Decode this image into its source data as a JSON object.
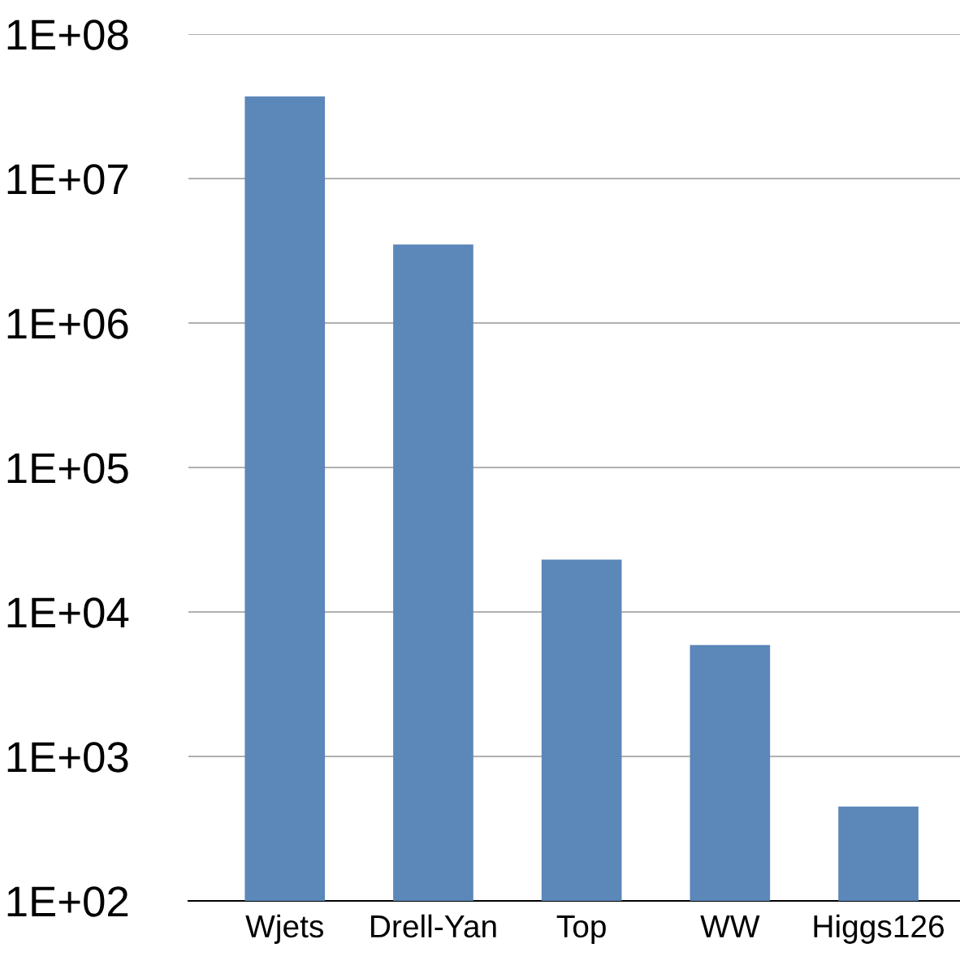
{
  "chart_data": {
    "type": "bar",
    "categories": [
      "Wjets",
      "Drell-Yan",
      "Top",
      "WW",
      "Higgs126"
    ],
    "values": [
      37000000,
      3500000,
      23000,
      5900,
      450
    ],
    "color": "#5b87b9",
    "log": "y",
    "ylim": [
      100,
      100000000
    ],
    "yticks": [
      {
        "value": 100,
        "label": "1E+02"
      },
      {
        "value": 1000,
        "label": "1E+03"
      },
      {
        "value": 10000,
        "label": "1E+04"
      },
      {
        "value": 100000,
        "label": "1E+05"
      },
      {
        "value": 1000000,
        "label": "1E+06"
      },
      {
        "value": 10000000,
        "label": "1E+07"
      },
      {
        "value": 100000000,
        "label": "1E+08"
      }
    ],
    "grid": "y",
    "legend": false
  }
}
